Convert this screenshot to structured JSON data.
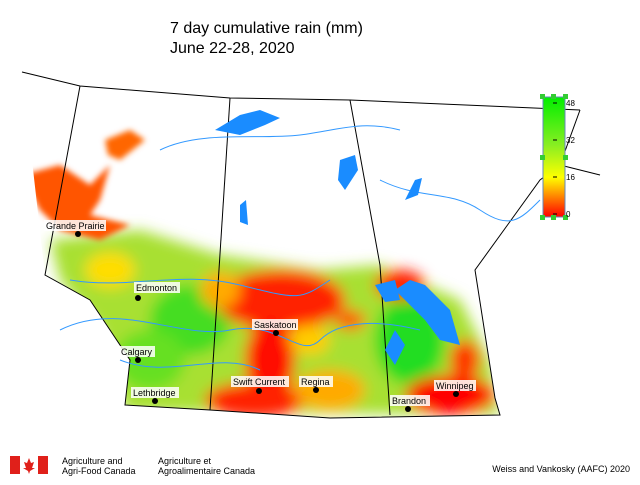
{
  "title": "7 day cumulative rain (mm)",
  "subtitle": "June 22-28, 2020",
  "legend": {
    "ticks": [
      0,
      16,
      32,
      48
    ]
  },
  "cities": [
    "Grande Prairie",
    "Edmonton",
    "Calgary",
    "Lethbridge",
    "Saskatoon",
    "Swift Current",
    "Regina",
    "Brandon",
    "Winnipeg"
  ],
  "footer": {
    "agency_en_1": "Agriculture and",
    "agency_en_2": "Agri-Food Canada",
    "agency_fr_1": "Agriculture et",
    "agency_fr_2": "Agroalimentaire Canada",
    "credit": "Weiss and Vankosky (AAFC) 2020"
  }
}
